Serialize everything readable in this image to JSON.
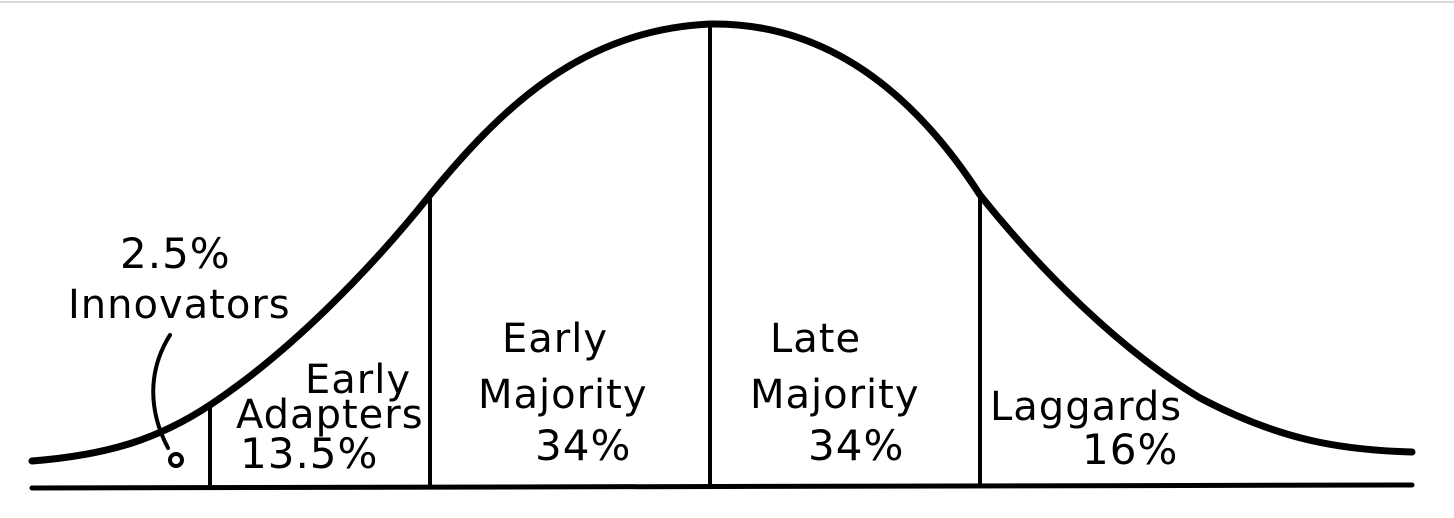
{
  "diagram": {
    "title": "",
    "segments": [
      {
        "id": "innovators",
        "name": "Innovators",
        "percent": "2.5%",
        "share": 2.5
      },
      {
        "id": "early-adopters",
        "name": "Early Adapters",
        "name_line1": "Early",
        "name_line2": "Adapters",
        "percent": "13.5%",
        "share": 13.5
      },
      {
        "id": "early-majority",
        "name": "Early Majority",
        "name_line1": "Early",
        "name_line2": "Majority",
        "percent": "34%",
        "share": 34
      },
      {
        "id": "late-majority",
        "name": "Late Majority",
        "name_line1": "Late",
        "name_line2": "Majority",
        "percent": "34%",
        "share": 34
      },
      {
        "id": "laggards",
        "name": "Laggards",
        "percent": "16%",
        "share": 16
      }
    ],
    "colors": {
      "ink": "#000000",
      "background": "#ffffff"
    }
  }
}
